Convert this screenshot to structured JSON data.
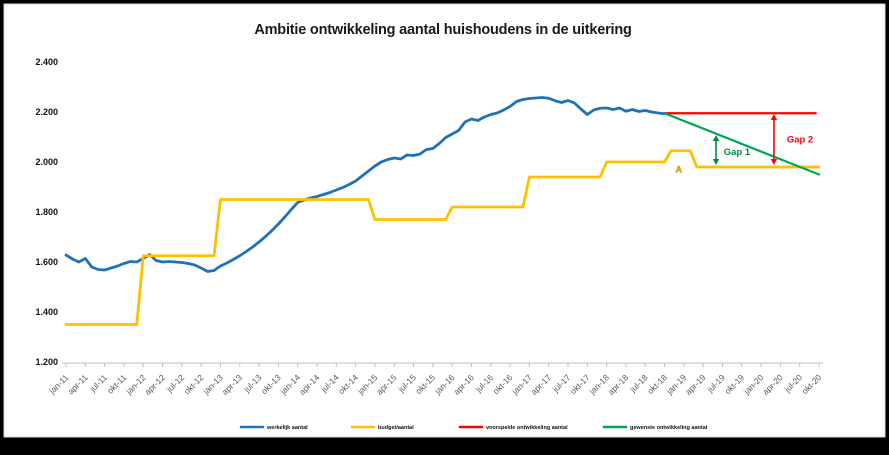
{
  "title": "Ambitie ontwikkeling aantal huishoudens in de uitkering",
  "colors": {
    "actual": "#1F72B5",
    "budget": "#FFC000",
    "forecast": "#FF0000",
    "desired": "#00A551",
    "axis": "#BFBFBF",
    "x_label": "#595959",
    "frame": "#000000",
    "canvas_border": "#D9D9D9"
  },
  "legend": [
    {
      "label": "werkelijk aantal",
      "color": "#1F72B5"
    },
    {
      "label": "budget/aantal",
      "color": "#FFC000"
    },
    {
      "label": "voorspelde ontwikkeling aantal",
      "color": "#FF0000"
    },
    {
      "label": "gewenste ontwikkeling aantal",
      "color": "#00A551"
    }
  ],
  "chart_data": {
    "type": "line",
    "title": "Ambitie ontwikkeling aantal huishoudens in de uitkering",
    "grid": false,
    "legend_position": "bottom",
    "y_axis": {
      "min": 1200,
      "max": 2400,
      "step": 200,
      "tick_labels": [
        "1.200",
        "1.400",
        "1.600",
        "1.800",
        "2.000",
        "2.200",
        "2.400"
      ]
    },
    "x_axis": {
      "total_months": 118,
      "first_month": "jan-11",
      "last_month": "okt-20",
      "tick_labels": [
        "jan-11",
        "apr-11",
        "jul-11",
        "okt-11",
        "jan-12",
        "apr-12",
        "jul-12",
        "okt-12",
        "jan-13",
        "apr-13",
        "jul-13",
        "okt-13",
        "jan-14",
        "apr-14",
        "jul-14",
        "okt-14",
        "jan-15",
        "apr-15",
        "jul-15",
        "okt-15",
        "jan-16",
        "apr-16",
        "jul-16",
        "okt-16",
        "jan-17",
        "apr-17",
        "jul-17",
        "okt-17",
        "jan-18",
        "apr-18",
        "jul-18",
        "okt-18",
        "jan-19",
        "apr-19",
        "jul-19",
        "okt-19",
        "jan-20",
        "apr-20",
        "jul-20",
        "okt-20"
      ]
    },
    "series": [
      {
        "name": "werkelijk aantal",
        "color": "#1F72B5",
        "width": 2.8,
        "start_month": 0,
        "values": [
          1628,
          1612,
          1600,
          1614,
          1580,
          1570,
          1568,
          1576,
          1584,
          1594,
          1602,
          1600,
          1614,
          1630,
          1606,
          1600,
          1602,
          1600,
          1598,
          1594,
          1588,
          1576,
          1562,
          1566,
          1584,
          1596,
          1610,
          1625,
          1642,
          1660,
          1680,
          1702,
          1726,
          1752,
          1780,
          1810,
          1838,
          1848,
          1856,
          1862,
          1870,
          1878,
          1888,
          1898,
          1910,
          1924,
          1944,
          1964,
          1984,
          2000,
          2010,
          2016,
          2012,
          2028,
          2026,
          2032,
          2050,
          2054,
          2074,
          2098,
          2112,
          2126,
          2160,
          2172,
          2166,
          2180,
          2190,
          2196,
          2208,
          2222,
          2242,
          2250,
          2254,
          2256,
          2258,
          2255,
          2245,
          2238,
          2246,
          2236,
          2212,
          2190,
          2208,
          2215,
          2216,
          2210,
          2216,
          2203,
          2210,
          2202,
          2206,
          2200,
          2196,
          2193
        ]
      },
      {
        "name": "budget/aantal",
        "color": "#FFC000",
        "width": 2.8,
        "steps": [
          {
            "start_month": 0,
            "end_month": 11,
            "value": 1350
          },
          {
            "start_month": 12,
            "end_month": 23,
            "value": 1625
          },
          {
            "start_month": 24,
            "end_month": 47,
            "value": 1850
          },
          {
            "start_month": 48,
            "end_month": 59,
            "value": 1770
          },
          {
            "start_month": 60,
            "end_month": 71,
            "value": 1820
          },
          {
            "start_month": 72,
            "end_month": 83,
            "value": 1940
          },
          {
            "start_month": 84,
            "end_month": 93,
            "value": 2000
          },
          {
            "start_month": 94,
            "end_month": 97,
            "value": 2045
          },
          {
            "start_month": 98,
            "end_month": 117,
            "value": 1980
          }
        ]
      },
      {
        "name": "voorspelde ontwikkeling aantal",
        "color": "#FF0000",
        "width": 2.2,
        "line": {
          "start": {
            "month": 93,
            "value": 2195
          },
          "end": {
            "month": 116.5,
            "value": 2195
          }
        }
      },
      {
        "name": "gewenste ontwikkeling aantal",
        "color": "#00A551",
        "width": 2.2,
        "line": {
          "start": {
            "month": 93,
            "value": 2195
          },
          "end": {
            "month": 117,
            "value": 1950
          }
        }
      }
    ],
    "annotations": {
      "gap1": {
        "label": "Gap 1",
        "color": "#008A45",
        "arrow": {
          "month": 101,
          "from_value": 2108,
          "to_value": 1988
        },
        "label_pos": {
          "month": 102.2,
          "value": 2028
        }
      },
      "gap2": {
        "label": "Gap 2",
        "color": "#FF0000",
        "arrow": {
          "month": 110,
          "from_value": 2192,
          "to_value": 1988
        },
        "label_pos": {
          "month": 112.0,
          "value": 2078
        }
      },
      "marker_a": {
        "label": "A",
        "color": "#FFC000",
        "pos": {
          "month": 95.2,
          "value": 1958
        }
      }
    }
  }
}
